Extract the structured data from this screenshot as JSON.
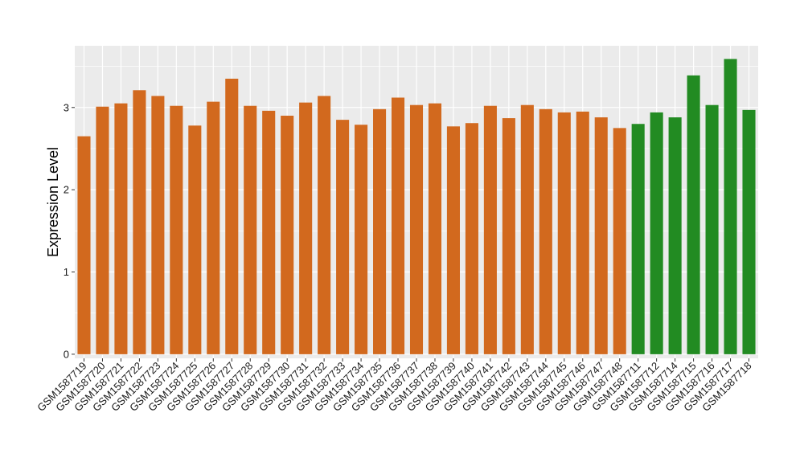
{
  "chart_data": {
    "type": "bar",
    "title": "",
    "xlabel": "",
    "ylabel": "Expression Level",
    "ylim": [
      -0.05,
      3.75
    ],
    "yticks": [
      0,
      1,
      2,
      3
    ],
    "grid": true,
    "legend": "none",
    "panel_background": "#ebebeb",
    "grid_color": "#ffffff",
    "categories": [
      "GSM1587719",
      "GSM1587720",
      "GSM1587721",
      "GSM1587722",
      "GSM1587723",
      "GSM1587724",
      "GSM1587725",
      "GSM1587726",
      "GSM1587727",
      "GSM1587728",
      "GSM1587729",
      "GSM1587730",
      "GSM1587731",
      "GSM1587732",
      "GSM1587733",
      "GSM1587734",
      "GSM1587735",
      "GSM1587736",
      "GSM1587737",
      "GSM1587738",
      "GSM1587739",
      "GSM1587740",
      "GSM1587741",
      "GSM1587742",
      "GSM1587743",
      "GSM1587744",
      "GSM1587745",
      "GSM1587746",
      "GSM1587747",
      "GSM1587748",
      "GSM1587711",
      "GSM1587712",
      "GSM1587714",
      "GSM1587715",
      "GSM1587716",
      "GSM1587717",
      "GSM1587718"
    ],
    "values": [
      2.65,
      3.01,
      3.05,
      3.21,
      3.14,
      3.02,
      2.78,
      3.07,
      3.35,
      3.02,
      2.96,
      2.9,
      3.06,
      3.14,
      2.85,
      2.79,
      2.98,
      3.12,
      3.03,
      3.05,
      2.77,
      2.81,
      3.02,
      2.87,
      3.03,
      2.98,
      2.94,
      2.95,
      2.88,
      2.75,
      2.8,
      2.94,
      2.88,
      3.39,
      3.03,
      3.59,
      2.97
    ],
    "groups": [
      "a",
      "a",
      "a",
      "a",
      "a",
      "a",
      "a",
      "a",
      "a",
      "a",
      "a",
      "a",
      "a",
      "a",
      "a",
      "a",
      "a",
      "a",
      "a",
      "a",
      "a",
      "a",
      "a",
      "a",
      "a",
      "a",
      "a",
      "a",
      "a",
      "a",
      "b",
      "b",
      "b",
      "b",
      "b",
      "b",
      "b"
    ],
    "colors": {
      "a": "#d2691e",
      "b": "#228b22"
    }
  }
}
